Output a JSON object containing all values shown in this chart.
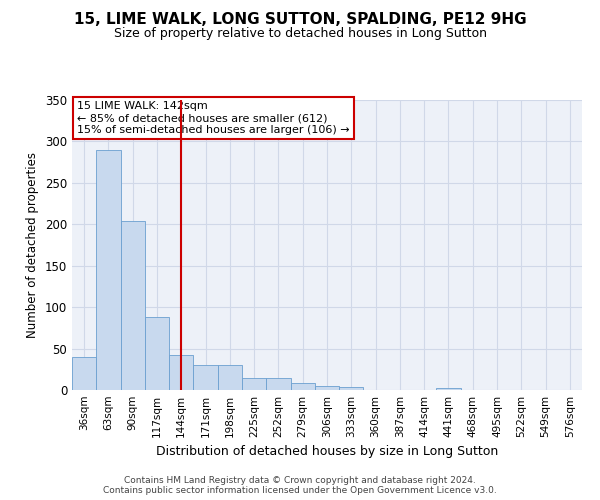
{
  "title": "15, LIME WALK, LONG SUTTON, SPALDING, PE12 9HG",
  "subtitle": "Size of property relative to detached houses in Long Sutton",
  "xlabel": "Distribution of detached houses by size in Long Sutton",
  "ylabel": "Number of detached properties",
  "bar_color": "#c8d9ee",
  "bar_edge_color": "#6a9fd0",
  "grid_color": "#d0d8e8",
  "vline_x": 4,
  "vline_color": "#cc0000",
  "annotation_text": "15 LIME WALK: 142sqm\n← 85% of detached houses are smaller (612)\n15% of semi-detached houses are larger (106) →",
  "annotation_box_color": "#ffffff",
  "annotation_box_edge": "#cc0000",
  "categories": [
    "36sqm",
    "63sqm",
    "90sqm",
    "117sqm",
    "144sqm",
    "171sqm",
    "198sqm",
    "225sqm",
    "252sqm",
    "279sqm",
    "306sqm",
    "333sqm",
    "360sqm",
    "387sqm",
    "414sqm",
    "441sqm",
    "468sqm",
    "495sqm",
    "522sqm",
    "549sqm",
    "576sqm"
  ],
  "values": [
    40,
    290,
    204,
    88,
    42,
    30,
    30,
    15,
    15,
    8,
    5,
    4,
    0,
    0,
    0,
    3,
    0,
    0,
    0,
    0,
    0
  ],
  "ylim": [
    0,
    350
  ],
  "yticks": [
    0,
    50,
    100,
    150,
    200,
    250,
    300,
    350
  ],
  "footer1": "Contains HM Land Registry data © Crown copyright and database right 2024.",
  "footer2": "Contains public sector information licensed under the Open Government Licence v3.0.",
  "background_color": "#edf1f8"
}
